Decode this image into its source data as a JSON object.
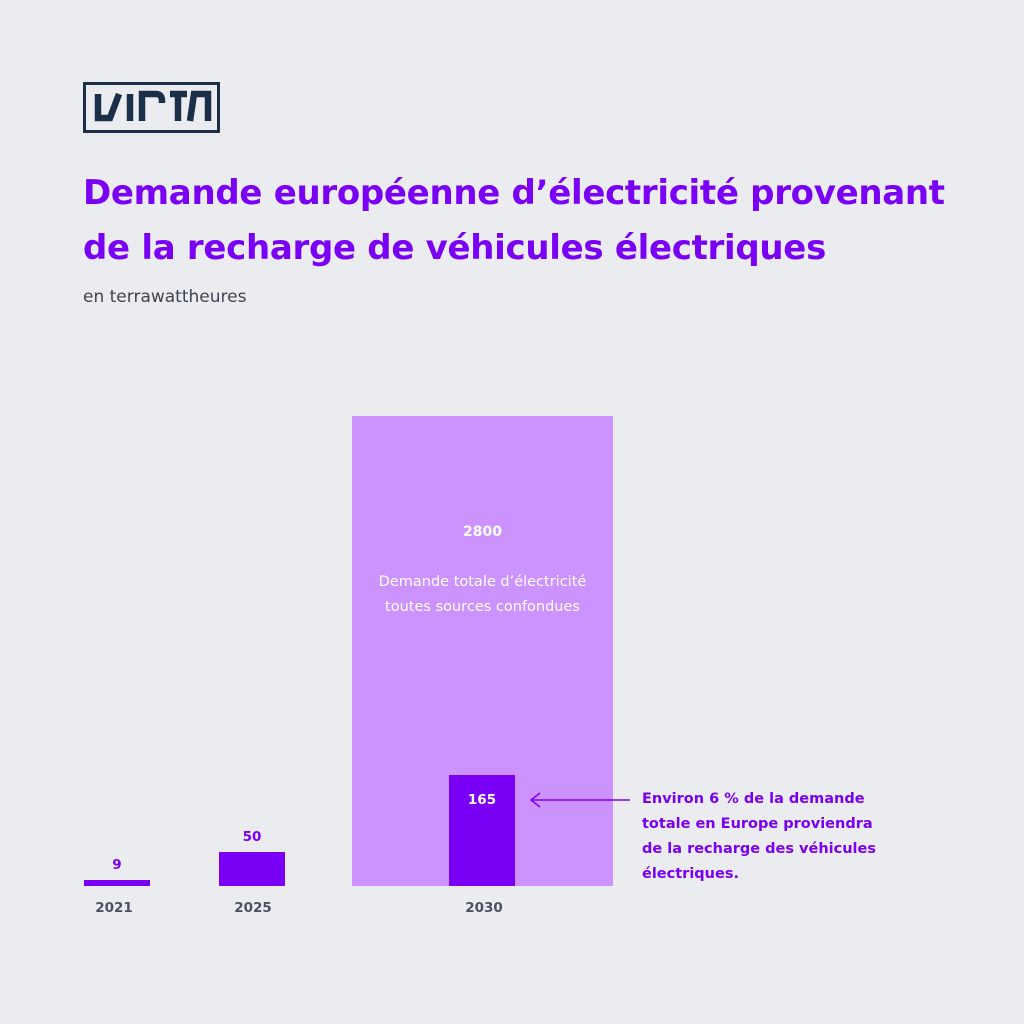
{
  "logo": {
    "text": "VIRTA",
    "color": "#1c2f48"
  },
  "title": "Demande européenne d’électricité provenant de la recharge de véhicules électriques",
  "subtitle": "en terrawattheures",
  "annotation": "Environ 6 % de la demande totale en Europe proviendra de la recharge des véhicules électriques.",
  "colors": {
    "accent": "#7a00f5",
    "background_bar": "#cc93fe",
    "axis_text": "#4a5160",
    "background": "#ebecf0"
  },
  "chart_data": {
    "type": "bar",
    "categories": [
      "2021",
      "2025",
      "2030"
    ],
    "series": [
      {
        "values": [
          9,
          50,
          165
        ]
      }
    ],
    "total_demand": {
      "category": "2030",
      "value": 2800,
      "label_line1": "Demande totale d’électricité",
      "label_line2": "toutes sources confondues"
    }
  }
}
